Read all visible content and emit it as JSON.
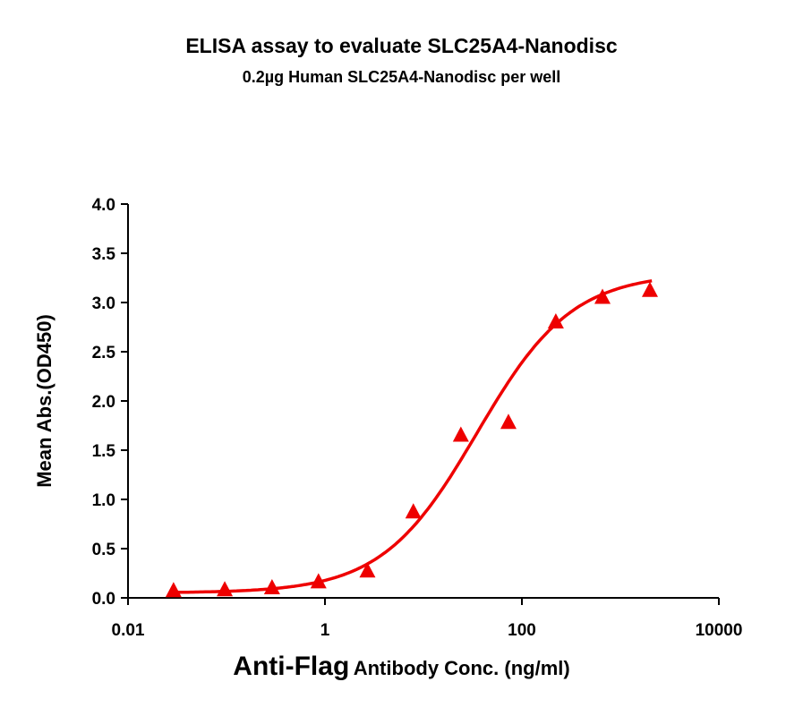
{
  "chart_data": {
    "type": "scatter",
    "title": "ELISA assay to evaluate SLC25A4-Nanodisc",
    "subtitle": "0.2µg Human SLC25A4-Nanodisc per well",
    "xlabel_main": "Anti-Flag",
    "xlabel_rest": "Antibody Conc. (ng/ml)",
    "ylabel": "Mean Abs.(OD450)",
    "x_scale": "log",
    "xlim": [
      0.01,
      10000
    ],
    "ylim": [
      0,
      4.0
    ],
    "x_ticks": [
      0.01,
      1,
      100,
      10000
    ],
    "x_tick_labels": [
      "0.01",
      "1",
      "100",
      "10000"
    ],
    "y_ticks": [
      0,
      0.5,
      1.0,
      1.5,
      2.0,
      2.5,
      3.0,
      3.5,
      4.0
    ],
    "y_tick_labels": [
      "0.0",
      "0.5",
      "1.0",
      "1.5",
      "2.0",
      "2.5",
      "3.0",
      "3.5",
      "4.0"
    ],
    "grid": false,
    "marker": "triangle",
    "color": "#ee0000",
    "fit": "sigmoidal curve",
    "x": [
      0.029,
      0.096,
      0.29,
      0.86,
      2.7,
      7.9,
      24,
      73,
      221,
      658,
      1995
    ],
    "y": [
      0.07,
      0.08,
      0.1,
      0.16,
      0.27,
      0.87,
      1.65,
      1.78,
      2.8,
      3.05,
      3.12
    ]
  }
}
